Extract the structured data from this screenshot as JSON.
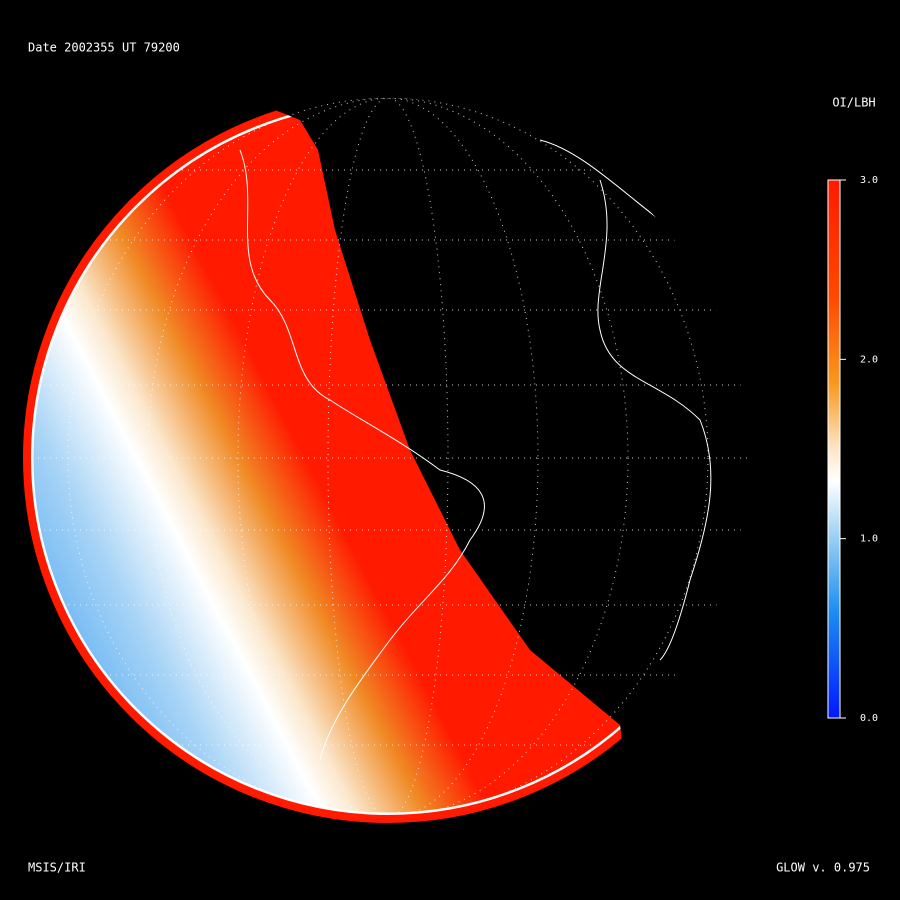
{
  "header": {
    "date": "Date 2002355",
    "ut": "UT 79200"
  },
  "colorbar": {
    "title": "OI/LBH",
    "lim": [
      0,
      3
    ],
    "ticks": [
      {
        "value": 3,
        "label": "3.0"
      },
      {
        "value": 2,
        "label": "2.0"
      },
      {
        "value": 1,
        "label": "1.0"
      },
      {
        "value": 0,
        "label": "0.0"
      }
    ]
  },
  "footer": {
    "left": "MSIS/IRI",
    "right": "GLOW v. 0.975"
  }
}
